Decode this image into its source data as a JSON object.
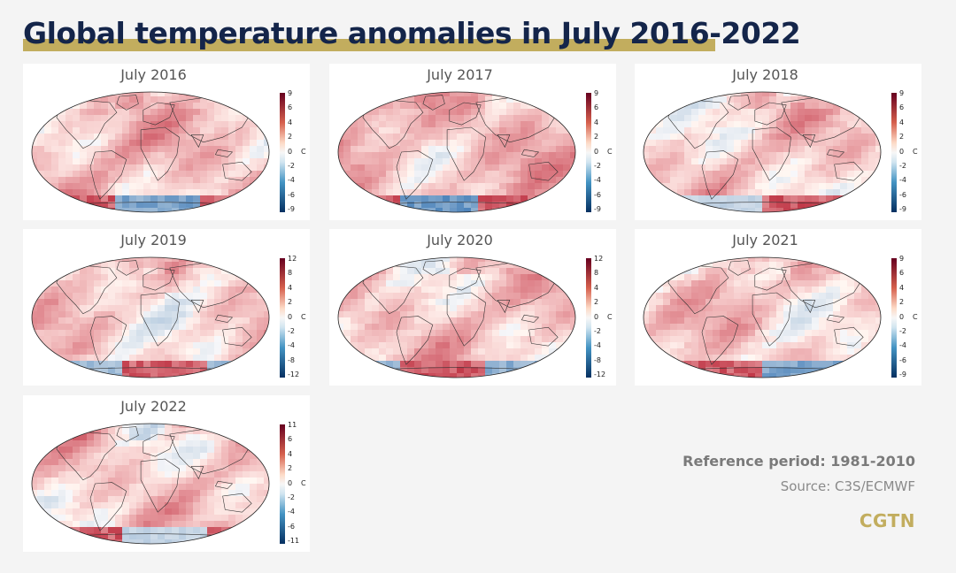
{
  "header": {
    "title": "Global temperature anomalies in July 2016-2022"
  },
  "colors": {
    "title": "#14254a",
    "accent": "#c2ad5e",
    "warm": "#b2182b",
    "cool": "#2166ac"
  },
  "panels": [
    {
      "title": "July 2016",
      "ticks": [
        "9",
        "6",
        "4",
        "2",
        "0",
        "-2",
        "-4",
        "-6",
        "-9"
      ],
      "unit": "C",
      "warm_bias": 0.6,
      "cool_south": 0.7
    },
    {
      "title": "July 2017",
      "ticks": [
        "9",
        "6",
        "4",
        "2",
        "0",
        "-2",
        "-4",
        "-6",
        "-9"
      ],
      "unit": "C",
      "warm_bias": 0.65,
      "cool_south": 0.8
    },
    {
      "title": "July 2018",
      "ticks": [
        "9",
        "6",
        "4",
        "2",
        "0",
        "-2",
        "-4",
        "-6",
        "-9"
      ],
      "unit": "C",
      "warm_bias": 0.5,
      "cool_south": 0.3
    },
    {
      "title": "July 2019",
      "ticks": [
        "12",
        "8",
        "4",
        "2",
        "0",
        "-2",
        "-4",
        "-8",
        "-12"
      ],
      "unit": "C",
      "warm_bias": 0.45,
      "cool_south": 0.5
    },
    {
      "title": "July 2020",
      "ticks": [
        "12",
        "8",
        "4",
        "2",
        "0",
        "-2",
        "-4",
        "-8",
        "-12"
      ],
      "unit": "C",
      "warm_bias": 0.55,
      "cool_south": 0.6
    },
    {
      "title": "July 2021",
      "ticks": [
        "9",
        "6",
        "4",
        "2",
        "0",
        "-2",
        "-4",
        "-6",
        "-9"
      ],
      "unit": "C",
      "warm_bias": 0.5,
      "cool_south": 0.7
    },
    {
      "title": "July 2022",
      "ticks": [
        "11",
        "6",
        "4",
        "2",
        "0",
        "-2",
        "-4",
        "-6",
        "-11"
      ],
      "unit": "C",
      "warm_bias": 0.5,
      "cool_south": 0.3
    }
  ],
  "footer": {
    "reference": "Reference period: 1981-2010",
    "source": "Source: C3S/ECMWF",
    "logo": "CGTN"
  }
}
